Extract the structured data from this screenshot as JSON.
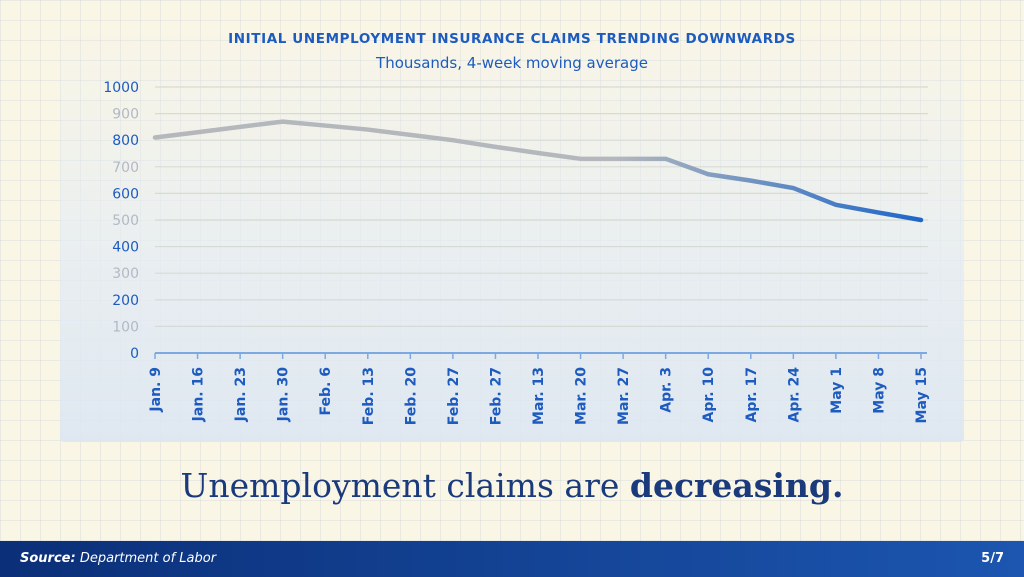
{
  "chart_data": {
    "type": "line",
    "title": "INITIAL UNEMPLOYMENT INSURANCE CLAIMS TRENDING DOWNWARDS",
    "subtitle": "Thousands, 4-week moving average",
    "xlabel": "",
    "ylabel": "",
    "ylim": [
      0,
      1000
    ],
    "yticks": [
      0,
      100,
      200,
      300,
      400,
      500,
      600,
      700,
      800,
      900,
      1000
    ],
    "grid": true,
    "line_gradient": [
      "#b4b8bd",
      "#1e66c8"
    ],
    "categories": [
      "Jan. 9",
      "Jan. 16",
      "Jan. 23",
      "Jan. 30",
      "Feb. 6",
      "Feb. 13",
      "Feb. 20",
      "Feb. 27",
      "Feb. 27",
      "Mar. 13",
      "Mar. 20",
      "Mar. 27",
      "Apr. 3",
      "Apr. 10",
      "Apr. 17",
      "Apr. 24",
      "May 1",
      "May 8",
      "May 15"
    ],
    "series": [
      {
        "values": [
          810,
          830,
          850,
          870,
          855,
          840,
          820,
          800,
          775,
          752,
          730,
          730,
          730,
          672,
          648,
          620,
          557,
          528,
          500
        ]
      }
    ]
  },
  "headline": {
    "text": "Unemployment claims are ",
    "emphasis": "decreasing."
  },
  "footer": {
    "source_label": "Source:",
    "source_text": " Department of Labor",
    "page": "5/7"
  },
  "colors": {
    "axis_blue": "#1d5bbf",
    "headline": "#1a3a7c",
    "footer_start": "#0b2f78",
    "footer_end": "#1c56b0"
  }
}
